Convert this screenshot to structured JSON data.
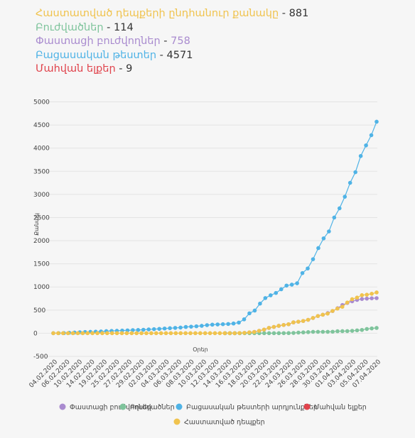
{
  "stats": [
    {
      "label": "Հաստատված դեպքերի ընդհանուր քանակը",
      "value": "881",
      "color": "#f0c34e",
      "valueColor": "#333"
    },
    {
      "label": "Բուժվածներ",
      "value": "114",
      "color": "#7fc49c",
      "valueColor": "#333"
    },
    {
      "label": "Փաստացի բուժվողներ",
      "value": "758",
      "color": "#a98bcf",
      "valueColor": "#a98bcf"
    },
    {
      "label": "Բացասական թեստեր",
      "value": "4571",
      "color": "#4fb3e6",
      "valueColor": "#333"
    },
    {
      "label": "Մահվան ելքեր",
      "value": "9",
      "color": "#e0434c",
      "valueColor": "#333"
    }
  ],
  "separator": "-",
  "chart_data": {
    "type": "line",
    "xlabel": "Օրեր",
    "ylabel": "Քանակ",
    "ylim": [
      -500,
      5000
    ],
    "yticks": [
      -500,
      0,
      500,
      1000,
      1500,
      2000,
      2500,
      3000,
      3500,
      4000,
      4500,
      5000
    ],
    "grid": true,
    "legend_position": "bottom",
    "x_tick_labels": [
      "04.02.2020",
      "06.02.2020",
      "10.02.2020",
      "14.02.2020",
      "19.02.2020",
      "25.02.2020",
      "27.02.2020",
      "29.02.2020",
      "02.03.2020",
      "04.03.2020",
      "06.03.2020",
      "08.03.2020",
      "10.03.2020",
      "12.03.2020",
      "14.03.2020",
      "16.03.2020",
      "18.03.2020",
      "20.03.2020",
      "22.03.2020",
      "24.03.2020",
      "26.03.2020",
      "28.03.2020",
      "30.03.2020",
      "01.04.2020",
      "03.04.2020",
      "05.04.2020",
      "07.04.2020"
    ],
    "series": [
      {
        "name": "Փաստացի բուժվողներ",
        "color": "#a98bcf",
        "offset": 34,
        "values": [
          1,
          1,
          1,
          1,
          6,
          17,
          29,
          52,
          78,
          115,
          136,
          160,
          178,
          194,
          235,
          249,
          265,
          290,
          330,
          372,
          400,
          435,
          480,
          540,
          610,
          655,
          690,
          720,
          740,
          748,
          755,
          758
        ]
      },
      {
        "name": "Բուժվածներ",
        "color": "#7fc49c",
        "offset": 34,
        "values": [
          0,
          0,
          0,
          1,
          1,
          1,
          1,
          1,
          1,
          1,
          1,
          1,
          2,
          3,
          6,
          14,
          18,
          24,
          30,
          30,
          30,
          31,
          33,
          43,
          45,
          46,
          52,
          62,
          71,
          92,
          104,
          114
        ]
      },
      {
        "name": "Բացասական թեստերի արդյունքներ",
        "color": "#4fb3e6",
        "offset": 0,
        "values": [
          1,
          2,
          3,
          10,
          15,
          21,
          27,
          30,
          34,
          39,
          45,
          50,
          53,
          58,
          62,
          67,
          70,
          75,
          82,
          88,
          94,
          102,
          109,
          115,
          122,
          135,
          142,
          150,
          160,
          175,
          185,
          190,
          195,
          200,
          210,
          230,
          300,
          430,
          490,
          640,
          760,
          820,
          870,
          950,
          1030,
          1050,
          1080,
          1300,
          1400,
          1600,
          1840,
          2050,
          2200,
          2500,
          2700,
          2950,
          3250,
          3480,
          3830,
          4060,
          4280,
          4571
        ]
      },
      {
        "name": "Մահվան ելքեր",
        "color": "#e0434c",
        "offset": 0,
        "values": []
      },
      {
        "name": "Հաստատված դեպքեր",
        "color": "#f0c34e",
        "offset": 0,
        "values": [
          1,
          1,
          1,
          1,
          1,
          1,
          1,
          1,
          1,
          1,
          1,
          1,
          1,
          1,
          1,
          1,
          1,
          1,
          1,
          1,
          1,
          1,
          1,
          1,
          1,
          1,
          1,
          1,
          1,
          1,
          1,
          1,
          1,
          1,
          1,
          1,
          1,
          1,
          4,
          8,
          18,
          26,
          52,
          78,
          115,
          136,
          160,
          178,
          194,
          235,
          249,
          265,
          290,
          330,
          372,
          400,
          424,
          482,
          532,
          571,
          663,
          736,
          770,
          822,
          833,
          853,
          881
        ]
      }
    ]
  }
}
